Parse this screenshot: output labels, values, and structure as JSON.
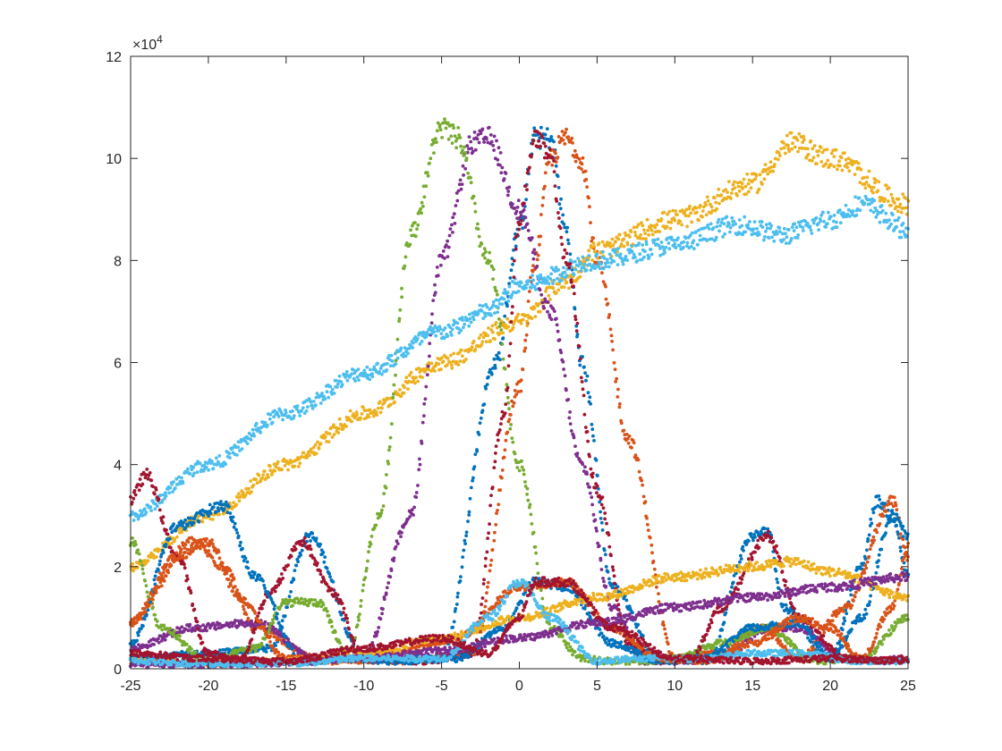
{
  "chart_data": {
    "type": "scatter",
    "title": "",
    "xlabel": "",
    "ylabel": "",
    "xlim": [
      -25,
      25
    ],
    "ylim": [
      0,
      120000
    ],
    "grid": false,
    "legend": "none",
    "y_exponent_label": "×10",
    "y_exponent_power": "4",
    "x_ticks": [
      -25,
      -20,
      -15,
      -10,
      -5,
      0,
      5,
      10,
      15,
      20,
      25
    ],
    "x_tick_labels": [
      "-25",
      "-20",
      "-15",
      "-10",
      "-5",
      "0",
      "5",
      "10",
      "15",
      "20",
      "25"
    ],
    "y_ticks": [
      0,
      20000,
      40000,
      60000,
      80000,
      100000,
      120000
    ],
    "y_tick_labels": [
      "0",
      "2",
      "4",
      "6",
      "8",
      "10",
      "12"
    ],
    "series": [
      {
        "color": "#0072BD",
        "x": [
          -25,
          -20,
          -16,
          -13.5,
          -10,
          -5,
          -1.5,
          0,
          1,
          2,
          3,
          4,
          6,
          9,
          12,
          15,
          16,
          17,
          20,
          22,
          23,
          24,
          25
        ],
        "y": [
          2000,
          3000,
          4000,
          26000,
          2000,
          2000,
          60000,
          86000,
          104000,
          104000,
          86000,
          60000,
          16000,
          2000,
          1500,
          26000,
          27000,
          12000,
          2000,
          20000,
          33000,
          30000,
          18000
        ]
      },
      {
        "color": "#D95319",
        "x": [
          -25,
          -21,
          -19,
          -17,
          -13,
          -8,
          -3,
          0,
          1,
          2,
          3,
          4,
          5,
          7,
          10,
          13,
          15.5,
          18,
          21,
          24,
          25
        ],
        "y": [
          9000,
          25000,
          20000,
          8000,
          2000,
          1500,
          3000,
          55000,
          80000,
          100000,
          104000,
          100000,
          80000,
          45000,
          2000,
          3000,
          8000,
          2000,
          12000,
          33000,
          22000
        ]
      },
      {
        "color": "#EDB120",
        "x": [
          -25,
          -20,
          -15,
          -10,
          -5,
          0,
          3,
          5,
          10,
          15,
          17.5,
          20,
          25
        ],
        "y": [
          20000,
          30000,
          40000,
          50000,
          60000,
          68000,
          76000,
          82000,
          88000,
          95000,
          103000,
          100000,
          91000
        ]
      },
      {
        "color": "#7E2F8E",
        "x": [
          -25,
          -21,
          -17,
          -13,
          -10,
          -7,
          -5,
          -3,
          -2,
          0,
          2,
          4,
          6,
          8,
          10,
          13,
          16,
          18,
          21,
          23,
          25
        ],
        "y": [
          4000,
          8000,
          9000,
          2000,
          2000,
          30000,
          80000,
          103000,
          104000,
          90000,
          70000,
          40000,
          12000,
          1500,
          1500,
          2000,
          8000,
          8000,
          2000,
          1500,
          2000
        ]
      },
      {
        "color": "#77AC30",
        "x": [
          -25,
          -23,
          -20,
          -17,
          -15,
          -13,
          -11,
          -9,
          -7,
          -5,
          -4,
          -2,
          0,
          2,
          4,
          6,
          8,
          10,
          13,
          16,
          19,
          22,
          25
        ],
        "y": [
          25000,
          8000,
          1500,
          4000,
          13000,
          13000,
          3000,
          30000,
          85000,
          106000,
          104000,
          80000,
          40000,
          8000,
          2000,
          1500,
          1500,
          2000,
          5000,
          8000,
          1500,
          2000,
          10000
        ]
      },
      {
        "color": "#4DBEEE",
        "x": [
          -25,
          -20,
          -15,
          -10,
          -5,
          -2,
          0,
          5,
          10,
          14,
          17,
          20,
          22,
          25
        ],
        "y": [
          30000,
          40000,
          50000,
          58000,
          66000,
          70000,
          75000,
          80000,
          83000,
          87000,
          85000,
          88000,
          91000,
          86000
        ]
      },
      {
        "color": "#A2142F",
        "x": [
          -25,
          -24,
          -22,
          -20,
          -18,
          -16,
          -14,
          -12,
          -10,
          -6,
          -3,
          -1,
          0,
          1,
          2,
          3,
          5,
          7,
          9,
          11,
          13,
          16,
          18,
          21,
          23,
          25
        ],
        "y": [
          33000,
          38000,
          22000,
          3000,
          1500,
          15000,
          25000,
          15000,
          2000,
          1500,
          3000,
          50000,
          88000,
          104000,
          100000,
          80000,
          35000,
          5000,
          1500,
          2000,
          12000,
          26000,
          10000,
          2000,
          1500,
          2000
        ]
      },
      {
        "color": "#0072BD",
        "x": [
          -25,
          -22,
          -19,
          -17,
          -14,
          -11,
          -8,
          -4,
          -1,
          1,
          3,
          6,
          9,
          12,
          15,
          18,
          20,
          22,
          24,
          25
        ],
        "y": [
          5000,
          28000,
          32000,
          18000,
          1500,
          2000,
          1500,
          2000,
          8000,
          17000,
          16000,
          5000,
          1500,
          2000,
          8000,
          9000,
          2000,
          10000,
          30000,
          26000
        ]
      },
      {
        "color": "#D95319",
        "x": [
          -25,
          -22,
          -20,
          -18,
          -15,
          -12,
          -8,
          -4,
          0,
          3,
          6,
          9,
          12,
          15,
          18,
          20,
          22,
          24,
          25
        ],
        "y": [
          9000,
          22000,
          25000,
          14000,
          2000,
          1500,
          3000,
          6000,
          16000,
          17000,
          8000,
          2000,
          1500,
          5000,
          10000,
          8000,
          2000,
          12000,
          24000
        ]
      },
      {
        "color": "#EDB120",
        "x": [
          -25,
          -20,
          -15,
          -10,
          -5,
          0,
          5,
          10,
          15,
          17.5,
          20,
          25
        ],
        "y": [
          1500,
          1000,
          1500,
          3000,
          6000,
          10000,
          14000,
          18000,
          20000,
          21000,
          19000,
          14000
        ]
      },
      {
        "color": "#7E2F8E",
        "x": [
          -25,
          -20,
          -15,
          -10,
          -5,
          0,
          5,
          10,
          15,
          20,
          25
        ],
        "y": [
          800,
          800,
          1200,
          2000,
          3500,
          6000,
          9000,
          12000,
          14000,
          16000,
          18000
        ]
      },
      {
        "color": "#4DBEEE",
        "x": [
          -25,
          -20,
          -15,
          -10,
          -5,
          -2,
          0,
          2,
          5,
          8,
          12,
          15,
          18,
          22,
          25
        ],
        "y": [
          1500,
          1000,
          1000,
          2000,
          2000,
          10000,
          17000,
          10000,
          1500,
          2000,
          2000,
          3000,
          3000,
          1500,
          1500
        ]
      },
      {
        "color": "#A2142F",
        "x": [
          -25,
          -20,
          -15,
          -10,
          -5,
          -2,
          0,
          1,
          3,
          6,
          10,
          15,
          20,
          25
        ],
        "y": [
          3000,
          2000,
          1500,
          4000,
          6000,
          3000,
          10000,
          17000,
          17000,
          8000,
          2000,
          1500,
          2000,
          1500
        ]
      }
    ]
  }
}
